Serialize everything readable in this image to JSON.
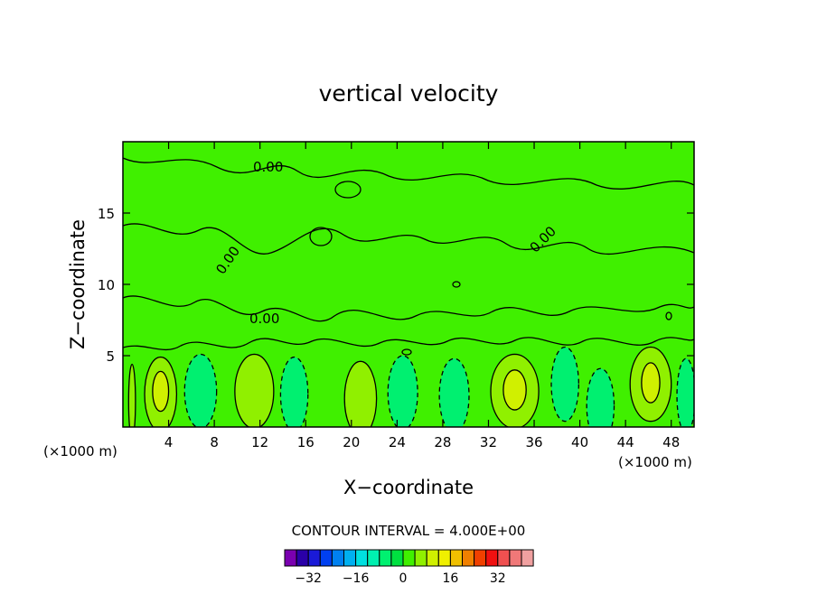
{
  "chart_data": {
    "type": "heatmap",
    "title": "vertical velocity",
    "xlabel": "X−coordinate",
    "ylabel": "Z−coordinate",
    "x_unit_left": "(×1000 m)",
    "x_unit_right": "(×1000 m)",
    "xlim": [
      0,
      50
    ],
    "ylim": [
      0,
      20
    ],
    "x_ticks": [
      {
        "value": 4,
        "label": "4"
      },
      {
        "value": 8,
        "label": "8"
      },
      {
        "value": 12,
        "label": "12"
      },
      {
        "value": 16,
        "label": "16"
      },
      {
        "value": 20,
        "label": "20"
      },
      {
        "value": 24,
        "label": "24"
      },
      {
        "value": 28,
        "label": "28"
      },
      {
        "value": 32,
        "label": "32"
      },
      {
        "value": 36,
        "label": "36"
      },
      {
        "value": 40,
        "label": "40"
      },
      {
        "value": 44,
        "label": "44"
      },
      {
        "value": 48,
        "label": "48"
      }
    ],
    "y_ticks": [
      {
        "value": 5,
        "label": "5"
      },
      {
        "value": 10,
        "label": "10"
      },
      {
        "value": 15,
        "label": "15"
      }
    ],
    "contour_interval_label": "CONTOUR INTERVAL = 4.000E+00",
    "contour_label": "0.00",
    "colorbar": {
      "colors": [
        "#7a00b0",
        "#2a00a8",
        "#1a1ad8",
        "#0040f0",
        "#0080f0",
        "#00b0f0",
        "#00e0e0",
        "#00f0b0",
        "#00f070",
        "#00e040",
        "#40f000",
        "#90f000",
        "#d0f000",
        "#f0f000",
        "#f0c000",
        "#f08000",
        "#f04000",
        "#f01010",
        "#f05050",
        "#f07878",
        "#f0a0a0"
      ],
      "ticks": [
        {
          "value": -32,
          "label": "−32"
        },
        {
          "value": -16,
          "label": "−16"
        },
        {
          "value": 0,
          "label": "0"
        },
        {
          "value": 16,
          "label": "16"
        },
        {
          "value": 32,
          "label": "32"
        }
      ],
      "min": -40,
      "step": 4
    },
    "background_level_color": "#40f000",
    "regions": [
      {
        "x": 0.8,
        "z": 1.8,
        "w": 0.6,
        "level": "positive",
        "color": "#90f000"
      },
      {
        "x": 3.3,
        "z": 2.3,
        "w": 2.8,
        "level": "positive",
        "color": "#90f000"
      },
      {
        "x": 3.3,
        "z": 2.5,
        "w": 1.4,
        "level": "strong",
        "color": "#d0f000"
      },
      {
        "x": 6.8,
        "z": 2.5,
        "w": 2.8,
        "level": "negative",
        "color": "#00f070"
      },
      {
        "x": 11.5,
        "z": 2.5,
        "w": 3.4,
        "level": "positive",
        "color": "#90f000"
      },
      {
        "x": 15.0,
        "z": 2.3,
        "w": 2.4,
        "level": "negative",
        "color": "#00f070"
      },
      {
        "x": 20.8,
        "z": 2.0,
        "w": 2.8,
        "level": "positive",
        "color": "#90f000"
      },
      {
        "x": 24.5,
        "z": 2.4,
        "w": 2.6,
        "level": "negative",
        "color": "#00f070"
      },
      {
        "x": 29.0,
        "z": 2.2,
        "w": 2.6,
        "level": "negative",
        "color": "#00f070"
      },
      {
        "x": 34.3,
        "z": 2.5,
        "w": 4.2,
        "level": "positive",
        "color": "#90f000"
      },
      {
        "x": 34.3,
        "z": 2.6,
        "w": 2.0,
        "level": "strong",
        "color": "#d0f000"
      },
      {
        "x": 38.7,
        "z": 3.0,
        "w": 2.4,
        "level": "negative",
        "color": "#00f070"
      },
      {
        "x": 41.8,
        "z": 1.5,
        "w": 2.4,
        "level": "negative",
        "color": "#00f070"
      },
      {
        "x": 46.2,
        "z": 3.0,
        "w": 3.6,
        "level": "positive",
        "color": "#90f000"
      },
      {
        "x": 46.2,
        "z": 3.1,
        "w": 1.6,
        "level": "strong",
        "color": "#d0f000"
      },
      {
        "x": 49.3,
        "z": 2.2,
        "w": 1.6,
        "level": "negative",
        "color": "#00f070"
      }
    ]
  }
}
